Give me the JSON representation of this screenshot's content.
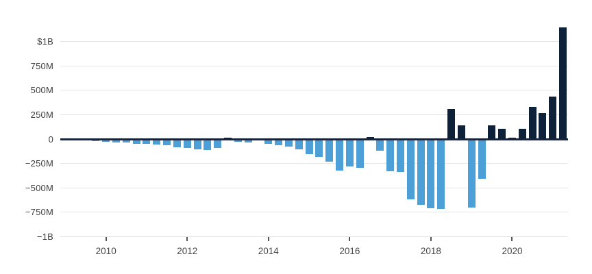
{
  "chart": {
    "background_color": "#ffffff",
    "gridline_color": "#e4e4e4",
    "zero_line_color": "#16233a",
    "axis_text_color": "#3d3d3d",
    "tick_mark_color": "#555555"
  },
  "chart_data": {
    "type": "bar",
    "title": "",
    "xlabel": "",
    "ylabel": "",
    "unit": "USD, chart labels in millions (M) and billions (B)",
    "grid": true,
    "legend_position": "none",
    "ylim": [
      -1000,
      1150
    ],
    "positive_color": "#0d2138",
    "negative_color": "#4d9fd8",
    "categories": [
      "2009 Q1",
      "2009 Q2",
      "2009 Q3",
      "2009 Q4",
      "2010 Q1",
      "2010 Q2",
      "2010 Q3",
      "2010 Q4",
      "2011 Q1",
      "2011 Q2",
      "2011 Q3",
      "2011 Q4",
      "2012 Q1",
      "2012 Q2",
      "2012 Q3",
      "2012 Q4",
      "2013 Q1",
      "2013 Q2",
      "2013 Q3",
      "2013 Q4",
      "2014 Q1",
      "2014 Q2",
      "2014 Q3",
      "2014 Q4",
      "2015 Q1",
      "2015 Q2",
      "2015 Q3",
      "2015 Q4",
      "2016 Q1",
      "2016 Q2",
      "2016 Q3",
      "2016 Q4",
      "2017 Q1",
      "2017 Q2",
      "2017 Q3",
      "2017 Q4",
      "2018 Q1",
      "2018 Q2",
      "2018 Q3",
      "2018 Q4",
      "2019 Q1",
      "2019 Q2",
      "2019 Q3",
      "2019 Q4",
      "2020 Q1",
      "2020 Q2",
      "2020 Q3",
      "2020 Q4",
      "2021 Q1",
      "2021 Q2"
    ],
    "values": [
      -16,
      -11,
      -5,
      -24,
      -30,
      -38,
      -35,
      -51,
      -49,
      -59,
      -65,
      -81,
      -90,
      -106,
      -111,
      -90,
      11,
      -31,
      -38,
      -16,
      -50,
      -62,
      -75,
      -108,
      -154,
      -184,
      -230,
      -320,
      -282,
      -293,
      22,
      -121,
      -330,
      -336,
      -619,
      -675,
      -710,
      -718,
      311,
      139,
      -702,
      -408,
      143,
      105,
      16,
      104,
      331,
      270,
      438,
      1142
    ],
    "y_ticks": [
      {
        "label": "$1B",
        "value": 1000
      },
      {
        "label": "750M",
        "value": 750
      },
      {
        "label": "500M",
        "value": 500
      },
      {
        "label": "250M",
        "value": 250
      },
      {
        "label": "0",
        "value": 0
      },
      {
        "label": "−250M",
        "value": -250
      },
      {
        "label": "−500M",
        "value": -500
      },
      {
        "label": "−750M",
        "value": -750
      },
      {
        "label": "−1B",
        "value": -1000
      }
    ],
    "x_ticks": [
      {
        "label": "2010",
        "index": 4
      },
      {
        "label": "2012",
        "index": 12
      },
      {
        "label": "2014",
        "index": 20
      },
      {
        "label": "2016",
        "index": 28
      },
      {
        "label": "2018",
        "index": 36
      },
      {
        "label": "2020",
        "index": 44
      }
    ]
  }
}
